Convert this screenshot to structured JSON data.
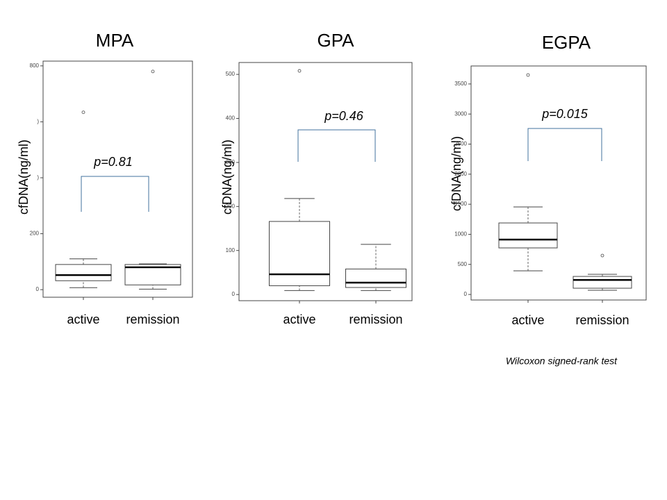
{
  "chart_data": [
    {
      "type": "box",
      "title": "MPA",
      "y_label": "cfDNA(ng/ml)",
      "annotation": "p=0.81",
      "categories": [
        "active",
        "remission"
      ],
      "min": [
        7,
        2
      ],
      "q1": [
        32,
        17
      ],
      "median": [
        52,
        80
      ],
      "q3": [
        90,
        90
      ],
      "max": [
        110,
        92
      ],
      "outliers": [
        [
          634
        ],
        [
          780
        ]
      ],
      "ylim": [
        -27,
        817
      ],
      "yticks": [
        0,
        200,
        {
          "value": 400,
          "label": ")"
        },
        {
          "value": 600,
          "label": ")"
        },
        800
      ]
    },
    {
      "type": "box",
      "title": "GPA",
      "y_label": "cfDNA(ng/ml)",
      "annotation": "p=0.46",
      "categories": [
        "active",
        "remission"
      ],
      "min": [
        9,
        9
      ],
      "q1": [
        20,
        16
      ],
      "median": [
        46,
        27
      ],
      "q3": [
        166,
        58
      ],
      "max": [
        218,
        114
      ],
      "outliers": [
        [
          508
        ],
        []
      ],
      "ylim": [
        -14,
        527
      ],
      "yticks": [
        0,
        100,
        200,
        300,
        400,
        500
      ]
    },
    {
      "type": "box",
      "title": "EGPA",
      "y_label": "cfDNA(ng/ml)",
      "annotation": "p=0.015",
      "categories": [
        "active",
        "remission"
      ],
      "min": [
        393,
        69
      ],
      "q1": [
        774,
        104
      ],
      "median": [
        912,
        242
      ],
      "q3": [
        1189,
        300
      ],
      "max": [
        1455,
        335
      ],
      "outliers": [
        [
          3649
        ],
        [
          647
        ]
      ],
      "ylim": [
        -92,
        3799
      ],
      "yticks": [
        0,
        500,
        1000,
        1500,
        2000,
        2500,
        3000,
        3500
      ]
    }
  ],
  "footnote": "Wilcoxon signed-rank test"
}
